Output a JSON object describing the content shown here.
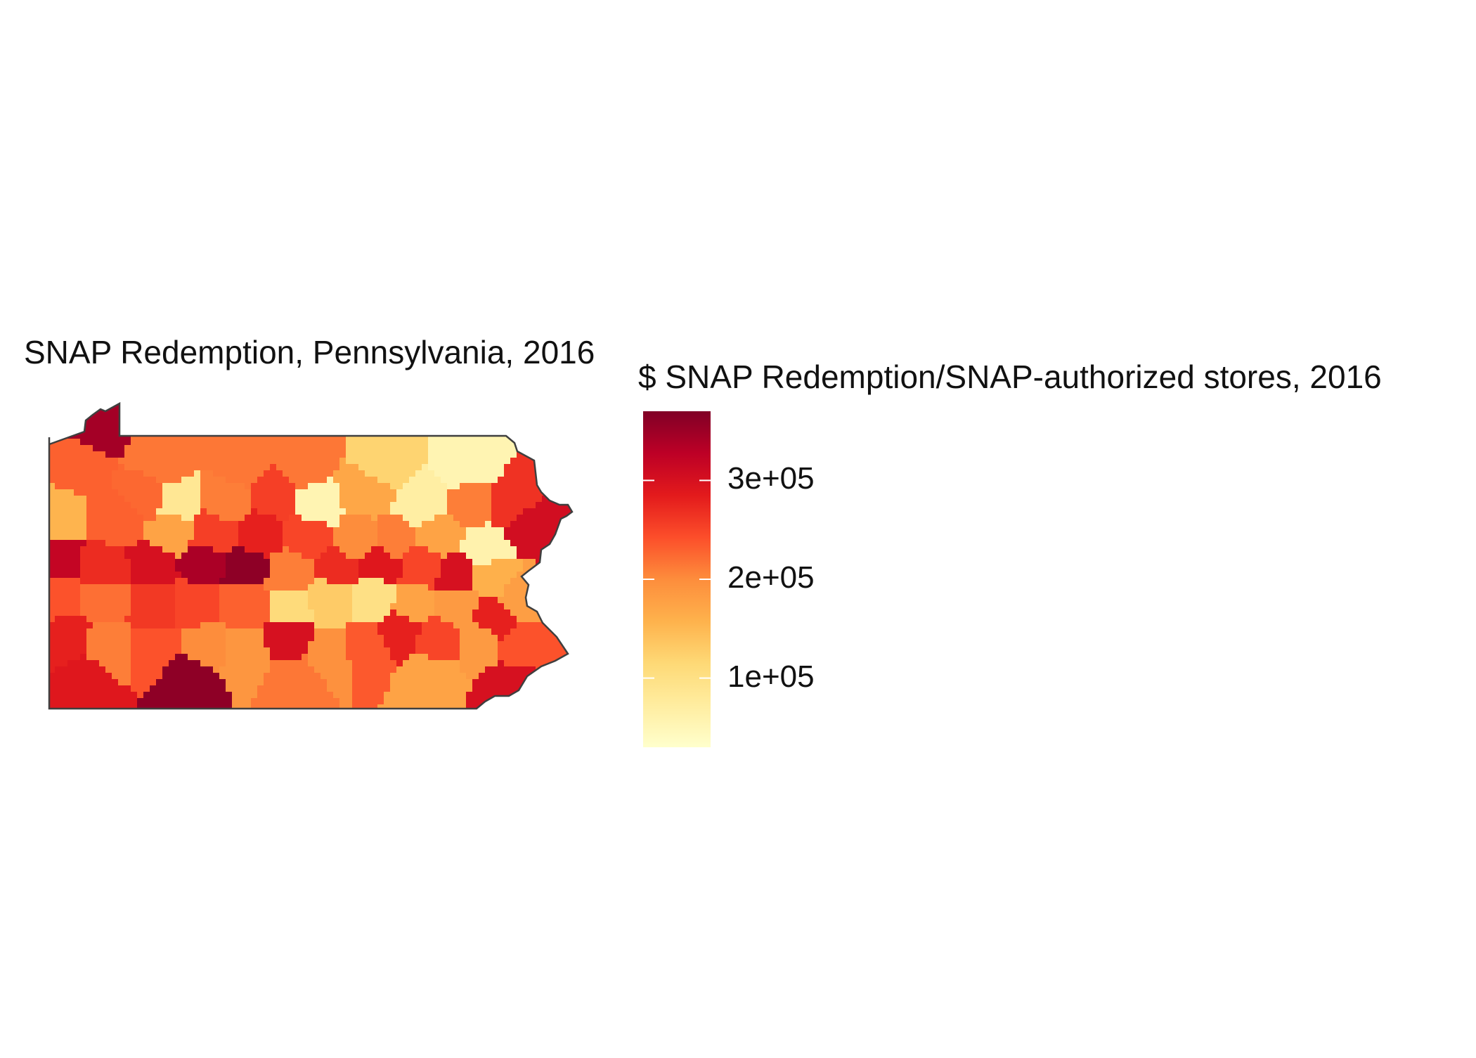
{
  "map": {
    "title": "SNAP Redemption, Pennsylvania, 2016",
    "region": "Pennsylvania counties",
    "outline_color": "#3f3f3f",
    "county_fill_values": [
      345000,
      230000,
      215000,
      215000,
      215000,
      120000,
      55000,
      85000,
      225000,
      210000,
      255000,
      55000,
      170000,
      70000,
      210000,
      265000,
      155000,
      230000,
      175000,
      255000,
      280000,
      250000,
      200000,
      210000,
      175000,
      60000,
      305000,
      320000,
      270000,
      300000,
      340000,
      360000,
      210000,
      270000,
      290000,
      250000,
      300000,
      160000,
      180000,
      240000,
      220000,
      260000,
      250000,
      230000,
      110000,
      130000,
      100000,
      175000,
      185000,
      280000,
      280000,
      210000,
      240000,
      200000,
      190000,
      300000,
      195000,
      235000,
      280000,
      250000,
      185000,
      240000,
      290000,
      360000,
      215000,
      175000,
      300000
    ]
  },
  "legend": {
    "title": "$ SNAP Redemption/SNAP-authorized stores, 2016",
    "min": 30000,
    "max": 370000,
    "ticks": [
      {
        "value": 300000,
        "label": "3e+05"
      },
      {
        "value": 200000,
        "label": "2e+05"
      },
      {
        "value": 100000,
        "label": "1e+05"
      }
    ],
    "colors": [
      "#FFFFCC",
      "#FFEDA0",
      "#FED976",
      "#FEB24C",
      "#FD8D3C",
      "#FC4E2A",
      "#E31A1C",
      "#BD0026",
      "#800026"
    ]
  }
}
